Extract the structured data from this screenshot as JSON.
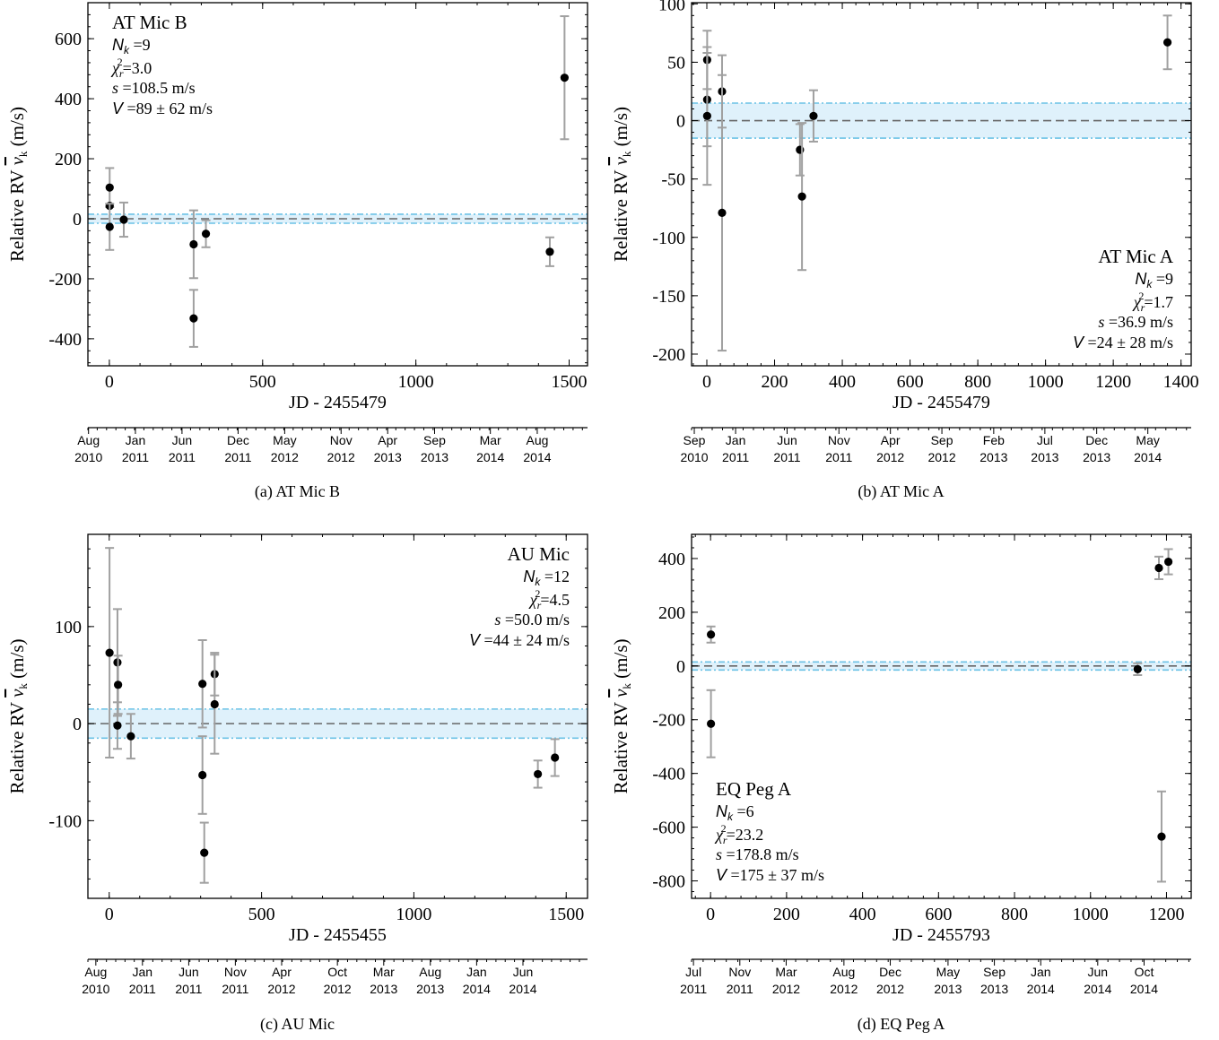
{
  "chart_data": [
    {
      "id": "a",
      "type": "scatter",
      "caption": "(a)  AT Mic B",
      "xlabel": "JD - 2455479",
      "ylabel_main": "Relative RV",
      "ylabel_sym": "v",
      "ylabel_sub": "k",
      "ylabel_unit": "(m/s)",
      "xlim": [
        -70,
        1560
      ],
      "ylim": [
        -490,
        720
      ],
      "xticks": [
        0,
        500,
        1000,
        1500
      ],
      "xtick_labels": [
        "0",
        "500",
        "1000",
        "1500"
      ],
      "yticks": [
        -400,
        -200,
        0,
        200,
        400,
        600
      ],
      "ytick_labels": [
        "-400",
        "-200",
        "0",
        "200",
        "400",
        "600"
      ],
      "band": 15,
      "date_ticks": [
        {
          "x": -68,
          "label": [
            "Aug",
            "2010"
          ]
        },
        {
          "x": 85,
          "label": [
            "Jan",
            "2011"
          ]
        },
        {
          "x": 237,
          "label": [
            "Jun",
            "2011"
          ]
        },
        {
          "x": 420,
          "label": [
            "Dec",
            "2011"
          ]
        },
        {
          "x": 572,
          "label": [
            "May",
            "2012"
          ]
        },
        {
          "x": 756,
          "label": [
            "Nov",
            "2012"
          ]
        },
        {
          "x": 908,
          "label": [
            "Apr",
            "2013"
          ]
        },
        {
          "x": 1061,
          "label": [
            "Sep",
            "2013"
          ]
        },
        {
          "x": 1243,
          "label": [
            "Mar",
            "2014"
          ]
        },
        {
          "x": 1396,
          "label": [
            "Aug",
            "2014"
          ]
        }
      ],
      "annotation": {
        "position": "top-left",
        "title": "AT Mic B",
        "nk": "=9",
        "chi2": "=3.0",
        "s": "=108.5 m/s",
        "v": "=89 ± 62 m/s"
      },
      "points": [
        {
          "x": 1,
          "y": 104,
          "err": 65
        },
        {
          "x": 1,
          "y": 43,
          "err": 0
        },
        {
          "x": 1,
          "y": -27,
          "err": 77
        },
        {
          "x": 47,
          "y": -3,
          "err": 57
        },
        {
          "x": 275,
          "y": -85,
          "err": 113
        },
        {
          "x": 275,
          "y": -332,
          "err": 95
        },
        {
          "x": 315,
          "y": -50,
          "err": 45
        },
        {
          "x": 1437,
          "y": -110,
          "err": 48
        },
        {
          "x": 1485,
          "y": 470,
          "err": 205
        }
      ]
    },
    {
      "id": "b",
      "type": "scatter",
      "caption": "(b)  AT Mic A",
      "xlabel": "JD - 2455479",
      "ylabel_main": "Relative RV",
      "ylabel_sym": "v",
      "ylabel_sub": "k",
      "ylabel_unit": "(m/s)",
      "xlim": [
        -45,
        1430
      ],
      "ylim": [
        -210,
        101
      ],
      "xticks": [
        0,
        200,
        400,
        600,
        800,
        1000,
        1200,
        1400
      ],
      "xtick_labels": [
        "0",
        "200",
        "400",
        "600",
        "800",
        "1000",
        "1200",
        "1400"
      ],
      "yticks": [
        -200,
        -150,
        -100,
        -50,
        0,
        50,
        100
      ],
      "ytick_labels": [
        "-200",
        "-150",
        "-100",
        "-50",
        "0",
        "50",
        "100"
      ],
      "band": 15,
      "date_ticks": [
        {
          "x": -37,
          "label": [
            "Sep",
            "2010"
          ]
        },
        {
          "x": 85,
          "label": [
            "Jan",
            "2011"
          ]
        },
        {
          "x": 237,
          "label": [
            "Jun",
            "2011"
          ]
        },
        {
          "x": 390,
          "label": [
            "Nov",
            "2011"
          ]
        },
        {
          "x": 542,
          "label": [
            "Apr",
            "2012"
          ]
        },
        {
          "x": 694,
          "label": [
            "Sep",
            "2012"
          ]
        },
        {
          "x": 847,
          "label": [
            "Feb",
            "2013"
          ]
        },
        {
          "x": 998,
          "label": [
            "Jul",
            "2013"
          ]
        },
        {
          "x": 1151,
          "label": [
            "Dec",
            "2013"
          ]
        },
        {
          "x": 1302,
          "label": [
            "May",
            "2014"
          ]
        }
      ],
      "annotation": {
        "position": "bottom-right",
        "title": "AT Mic A",
        "nk": "=9",
        "chi2": "=1.7",
        "s": "=36.9 m/s",
        "v": "=24 ± 28 m/s"
      },
      "points": [
        {
          "x": 1,
          "y": 52,
          "err": 25
        },
        {
          "x": 1,
          "y": 18,
          "err": 40
        },
        {
          "x": 1,
          "y": 4,
          "err": 59
        },
        {
          "x": 45,
          "y": 25,
          "err": 31
        },
        {
          "x": 45,
          "y": -79,
          "err": 118
        },
        {
          "x": 275,
          "y": -25,
          "err": 22
        },
        {
          "x": 281,
          "y": -65,
          "err": 63
        },
        {
          "x": 315,
          "y": 4,
          "err": 22
        },
        {
          "x": 1360,
          "y": 67,
          "err": 23
        }
      ]
    },
    {
      "id": "c",
      "type": "scatter",
      "caption": "(c)  AU Mic",
      "xlabel": "JD - 2455455",
      "ylabel_main": "Relative RV",
      "ylabel_sym": "v",
      "ylabel_sub": "k",
      "ylabel_unit": "(m/s)",
      "xlim": [
        -70,
        1570
      ],
      "ylim": [
        -180,
        195
      ],
      "xticks": [
        0,
        500,
        1000,
        1500
      ],
      "xtick_labels": [
        "0",
        "500",
        "1000",
        "1500"
      ],
      "yticks": [
        -100,
        0,
        100
      ],
      "ytick_labels": [
        "-100",
        "0",
        "100"
      ],
      "band": 15,
      "date_ticks": [
        {
          "x": -44,
          "label": [
            "Aug",
            "2010"
          ]
        },
        {
          "x": 109,
          "label": [
            "Jan",
            "2011"
          ]
        },
        {
          "x": 261,
          "label": [
            "Jun",
            "2011"
          ]
        },
        {
          "x": 414,
          "label": [
            "Nov",
            "2011"
          ]
        },
        {
          "x": 566,
          "label": [
            "Apr",
            "2012"
          ]
        },
        {
          "x": 749,
          "label": [
            "Oct",
            "2012"
          ]
        },
        {
          "x": 901,
          "label": [
            "Mar",
            "2013"
          ]
        },
        {
          "x": 1054,
          "label": [
            "Aug",
            "2013"
          ]
        },
        {
          "x": 1206,
          "label": [
            "Jan",
            "2014"
          ]
        },
        {
          "x": 1358,
          "label": [
            "Jun",
            "2014"
          ]
        }
      ],
      "annotation": {
        "position": "top-right",
        "title": "AU Mic",
        "nk": "=12",
        "chi2": "=4.5",
        "s": "=50.0 m/s",
        "v": "=44 ± 24 m/s"
      },
      "points": [
        {
          "x": 1,
          "y": 73,
          "err": 108
        },
        {
          "x": 27,
          "y": 63,
          "err": 55
        },
        {
          "x": 29,
          "y": 40,
          "err": 30
        },
        {
          "x": 27,
          "y": -2,
          "err": 24
        },
        {
          "x": 71,
          "y": -13,
          "err": 23
        },
        {
          "x": 306,
          "y": 41,
          "err": 45
        },
        {
          "x": 306,
          "y": -53,
          "err": 40
        },
        {
          "x": 312,
          "y": -133,
          "err": 31
        },
        {
          "x": 346,
          "y": 51,
          "err": 22
        },
        {
          "x": 346,
          "y": 20,
          "err": 51
        },
        {
          "x": 1407,
          "y": -52,
          "err": 14
        },
        {
          "x": 1463,
          "y": -35,
          "err": 19
        }
      ]
    },
    {
      "id": "d",
      "type": "scatter",
      "caption": "(d)  EQ Peg A",
      "xlabel": "JD - 2455793",
      "ylabel_main": "Relative RV",
      "ylabel_sym": "v",
      "ylabel_sub": "k",
      "ylabel_unit": "(m/s)",
      "xlim": [
        -50,
        1265
      ],
      "ylim": [
        -865,
        490
      ],
      "xticks": [
        0,
        200,
        400,
        600,
        800,
        1000,
        1200
      ],
      "xtick_labels": [
        "0",
        "200",
        "400",
        "600",
        "800",
        "1000",
        "1200"
      ],
      "yticks": [
        -800,
        -600,
        -400,
        -200,
        0,
        200,
        400
      ],
      "ytick_labels": [
        "-800",
        "-600",
        "-400",
        "-200",
        "0",
        "200",
        "400"
      ],
      "band": 15,
      "date_ticks": [
        {
          "x": -45,
          "label": [
            "Jul",
            "2011"
          ]
        },
        {
          "x": 77,
          "label": [
            "Nov",
            "2011"
          ]
        },
        {
          "x": 199,
          "label": [
            "Mar",
            "2012"
          ]
        },
        {
          "x": 351,
          "label": [
            "Aug",
            "2012"
          ]
        },
        {
          "x": 473,
          "label": [
            "Dec",
            "2012"
          ]
        },
        {
          "x": 625,
          "label": [
            "May",
            "2013"
          ]
        },
        {
          "x": 747,
          "label": [
            "Sep",
            "2013"
          ]
        },
        {
          "x": 869,
          "label": [
            "Jan",
            "2014"
          ]
        },
        {
          "x": 1019,
          "label": [
            "Jun",
            "2014"
          ]
        },
        {
          "x": 1141,
          "label": [
            "Oct",
            "2014"
          ]
        }
      ],
      "annotation": {
        "position": "bottom-left",
        "title": "EQ Peg A",
        "nk": "=6",
        "chi2": "=23.2",
        "s": "=178.8 m/s",
        "v": "=175 ± 37 m/s"
      },
      "points": [
        {
          "x": 1,
          "y": 117,
          "err": 30
        },
        {
          "x": 1,
          "y": -215,
          "err": 125
        },
        {
          "x": 1124,
          "y": -12,
          "err": 22
        },
        {
          "x": 1180,
          "y": 365,
          "err": 42
        },
        {
          "x": 1187,
          "y": -635,
          "err": 168
        },
        {
          "x": 1205,
          "y": 388,
          "err": 47
        }
      ]
    }
  ]
}
